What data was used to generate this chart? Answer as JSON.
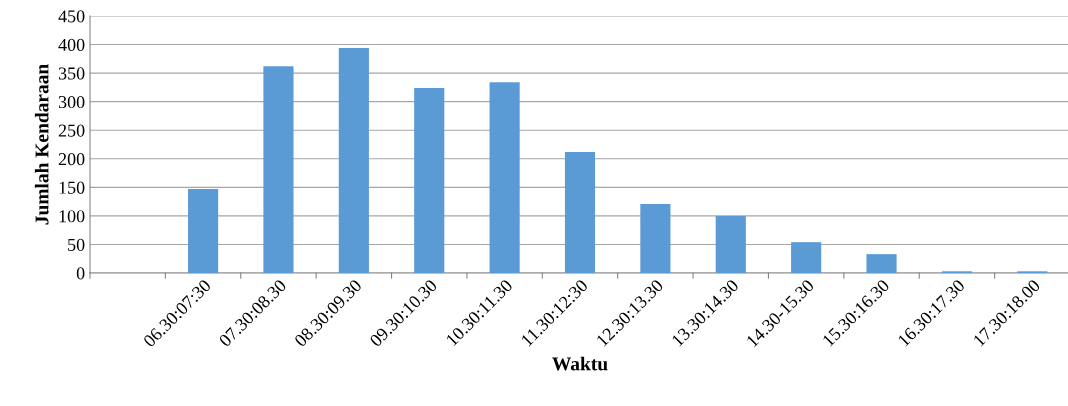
{
  "chart_data": {
    "type": "bar",
    "xlabel": "Waktu",
    "ylabel": "Jumlah Kendaraan",
    "categories": [
      null,
      "06.30:07:30",
      "07.30:08.30",
      "08.30:09.30",
      "09.30:10.30",
      "10.30:11.30",
      "11.30:12:30",
      "12.30:13.30",
      "13.30:14.30",
      "14.30-15.30",
      "15.30:16.30",
      "16.30:17.30",
      "17.30:18.00"
    ],
    "values": [
      null,
      147,
      362,
      394,
      324,
      334,
      212,
      121,
      100,
      54,
      33,
      3,
      3
    ],
    "color": "#5b9bd5",
    "ylim": [
      0,
      450
    ],
    "yticks": [
      0,
      50,
      100,
      150,
      200,
      250,
      300,
      350,
      400,
      450
    ],
    "grid": "y"
  }
}
